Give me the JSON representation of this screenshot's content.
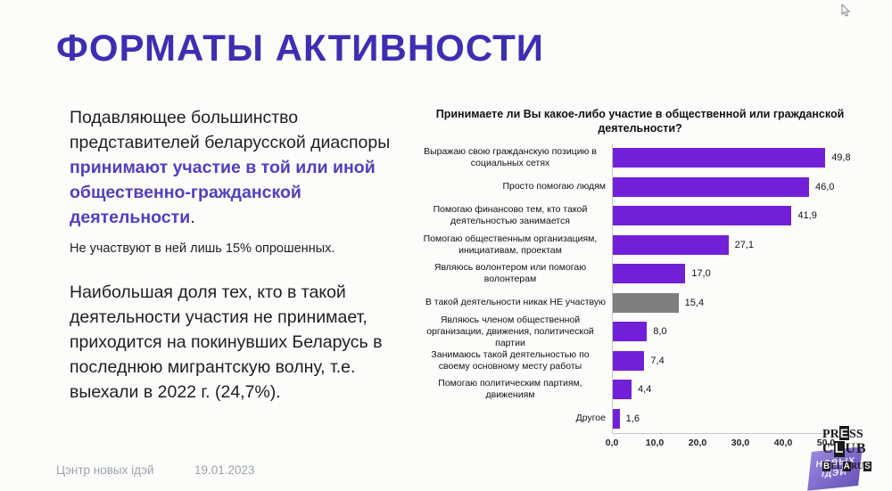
{
  "slide": {
    "title": "ФОРМАТЫ АКТИВНОСТИ",
    "intro": {
      "black": "Подавляющее большинство представителей беларусской диаспоры ",
      "purple": "принимают участие в той или иной общественно-гражданской деятельности",
      "period": "."
    },
    "note": "Не участвуют в ней лишь 15% опрошенных.",
    "para2": "Наибольшая доля тех, кто в такой деятельности участия не принимает, приходится на покинувших Беларусь в последнюю мигрантскую волну, т.е. выехали в 2022 г. (24,7%).",
    "footer": {
      "source": "Цэнтр новых ідэй",
      "date": "19.01.2023"
    }
  },
  "chart_data": {
    "type": "bar",
    "orientation": "horizontal",
    "title": "Принимаете ли Вы какое-либо участие в общественной или гражданской деятельности?",
    "categories": [
      "Выражаю свою гражданскую позицию в социальных сетях",
      "Просто помогаю людям",
      "Помогаю финансово тем, кто такой деятельностью занимается",
      "Помогаю общественным организациям, инициативам, проектам",
      "Являюсь волонтером или помогаю волонтерам",
      "В такой деятельности никак НЕ участвую",
      "Являюсь членом общественной организации, движения, политической партии",
      "Занимаюсь такой деятельностью по своему основному месту работы",
      "Помогаю политическим партиям, движениям",
      "Другое"
    ],
    "values": [
      49.8,
      46.0,
      41.9,
      27.1,
      17.0,
      15.4,
      8.0,
      7.4,
      4.4,
      1.6
    ],
    "value_labels": [
      "49,8",
      "46,0",
      "41,9",
      "27,1",
      "17,0",
      "15,4",
      "8,0",
      "7,4",
      "4,4",
      "1,6"
    ],
    "bar_color": "#7220d8",
    "muted_bar_color": "#7f7f7f",
    "muted_index": 5,
    "xlim": [
      0,
      50
    ],
    "x_tick_values": [
      0,
      10,
      20,
      30,
      40,
      50
    ],
    "x_tick_labels": [
      "0,0",
      "10,0",
      "20,0",
      "30,0",
      "40,0",
      "50,0"
    ],
    "gridlines": false,
    "legend": false
  },
  "logo": {
    "line1": "PRESS",
    "line2": "CLUB",
    "line3": "BELARUS",
    "banner_line1": "НОВЫХ",
    "banner_line2": "ІДЭЙ"
  },
  "colors": {
    "title": "#3d2eb2",
    "accent_text": "#4f3fc0",
    "footer_text": "#9ba3b0"
  }
}
